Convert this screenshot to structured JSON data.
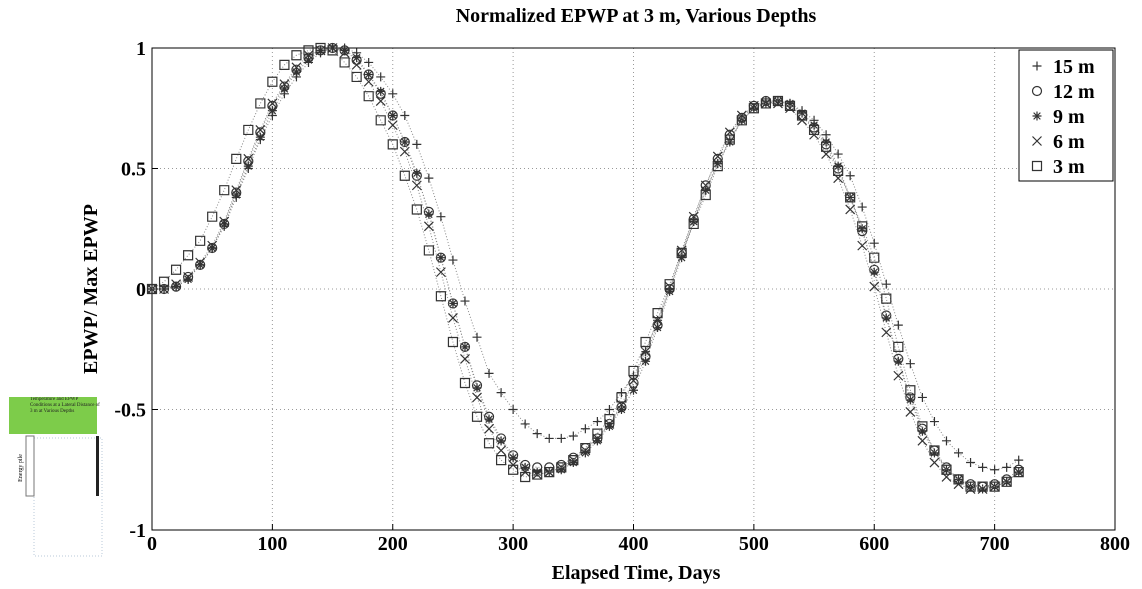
{
  "chart_data": {
    "type": "scatter",
    "title": "Normalized EPWP at 3 m, Various Depths",
    "x_label": "Elapsed Time, Days",
    "y_label": "EPWP/ Max EPWP",
    "xlim": [
      0,
      800
    ],
    "xticks": [
      0,
      100,
      200,
      300,
      400,
      500,
      600,
      700,
      800
    ],
    "ylim": [
      -1,
      1
    ],
    "yticks": [
      -1,
      -0.5,
      0,
      0.5,
      1
    ],
    "grid": true,
    "legend": "upper right",
    "x": [
      0,
      10,
      20,
      30,
      40,
      50,
      60,
      70,
      80,
      90,
      100,
      110,
      120,
      130,
      140,
      150,
      160,
      170,
      180,
      190,
      200,
      210,
      220,
      230,
      240,
      250,
      260,
      270,
      280,
      290,
      300,
      310,
      320,
      330,
      340,
      350,
      360,
      370,
      380,
      390,
      400,
      410,
      420,
      430,
      440,
      450,
      460,
      470,
      480,
      490,
      500,
      510,
      520,
      530,
      540,
      550,
      560,
      570,
      580,
      590,
      600,
      610,
      620,
      630,
      640,
      650,
      660,
      670,
      680,
      690,
      700,
      710,
      720
    ],
    "series": [
      {
        "name": "15 m",
        "marker": "plus",
        "color": "#333333",
        "values": [
          0,
          0,
          0.01,
          0.04,
          0.1,
          0.17,
          0.26,
          0.38,
          0.5,
          0.62,
          0.72,
          0.81,
          0.88,
          0.94,
          0.98,
          1.0,
          1.0,
          0.98,
          0.94,
          0.88,
          0.81,
          0.72,
          0.6,
          0.46,
          0.3,
          0.12,
          -0.05,
          -0.2,
          -0.35,
          -0.43,
          -0.5,
          -0.56,
          -0.6,
          -0.62,
          -0.62,
          -0.61,
          -0.58,
          -0.55,
          -0.5,
          -0.43,
          -0.36,
          -0.26,
          -0.13,
          0.0,
          0.14,
          0.28,
          0.41,
          0.52,
          0.62,
          0.7,
          0.75,
          0.78,
          0.78,
          0.77,
          0.74,
          0.7,
          0.64,
          0.56,
          0.47,
          0.34,
          0.19,
          0.02,
          -0.15,
          -0.31,
          -0.45,
          -0.55,
          -0.63,
          -0.68,
          -0.72,
          -0.74,
          -0.75,
          -0.74,
          -0.71
        ]
      },
      {
        "name": "12 m",
        "marker": "circle",
        "color": "#333333",
        "values": [
          0,
          0,
          0.01,
          0.05,
          0.1,
          0.17,
          0.27,
          0.4,
          0.53,
          0.65,
          0.76,
          0.84,
          0.91,
          0.96,
          0.99,
          1.0,
          0.99,
          0.95,
          0.89,
          0.81,
          0.72,
          0.61,
          0.47,
          0.32,
          0.13,
          -0.06,
          -0.24,
          -0.4,
          -0.53,
          -0.62,
          -0.69,
          -0.73,
          -0.74,
          -0.74,
          -0.73,
          -0.7,
          -0.66,
          -0.62,
          -0.56,
          -0.49,
          -0.39,
          -0.28,
          -0.15,
          0.0,
          0.15,
          0.29,
          0.43,
          0.54,
          0.64,
          0.71,
          0.76,
          0.78,
          0.78,
          0.76,
          0.72,
          0.67,
          0.6,
          0.5,
          0.38,
          0.24,
          0.08,
          -0.11,
          -0.29,
          -0.45,
          -0.58,
          -0.67,
          -0.74,
          -0.79,
          -0.81,
          -0.82,
          -0.81,
          -0.79,
          -0.75
        ]
      },
      {
        "name": "9 m",
        "marker": "star",
        "color": "#333333",
        "values": [
          0,
          0,
          0.01,
          0.04,
          0.1,
          0.17,
          0.27,
          0.39,
          0.51,
          0.63,
          0.74,
          0.83,
          0.9,
          0.95,
          0.99,
          1.0,
          0.99,
          0.96,
          0.89,
          0.82,
          0.72,
          0.61,
          0.48,
          0.31,
          0.13,
          -0.06,
          -0.24,
          -0.41,
          -0.54,
          -0.63,
          -0.7,
          -0.74,
          -0.76,
          -0.76,
          -0.75,
          -0.72,
          -0.68,
          -0.63,
          -0.57,
          -0.5,
          -0.42,
          -0.3,
          -0.16,
          -0.01,
          0.13,
          0.28,
          0.41,
          0.52,
          0.61,
          0.7,
          0.75,
          0.77,
          0.78,
          0.77,
          0.73,
          0.68,
          0.61,
          0.51,
          0.38,
          0.25,
          0.07,
          -0.12,
          -0.3,
          -0.46,
          -0.59,
          -0.68,
          -0.75,
          -0.79,
          -0.82,
          -0.83,
          -0.82,
          -0.8,
          -0.76
        ]
      },
      {
        "name": "6 m",
        "marker": "cross",
        "color": "#333333",
        "values": [
          0,
          0,
          0.02,
          0.05,
          0.11,
          0.18,
          0.28,
          0.41,
          0.54,
          0.66,
          0.77,
          0.85,
          0.92,
          0.97,
          0.99,
          1.0,
          0.98,
          0.93,
          0.86,
          0.78,
          0.68,
          0.57,
          0.43,
          0.26,
          0.07,
          -0.12,
          -0.29,
          -0.45,
          -0.58,
          -0.67,
          -0.73,
          -0.76,
          -0.77,
          -0.76,
          -0.74,
          -0.71,
          -0.67,
          -0.62,
          -0.56,
          -0.48,
          -0.38,
          -0.26,
          -0.13,
          0.01,
          0.16,
          0.3,
          0.43,
          0.55,
          0.65,
          0.72,
          0.76,
          0.77,
          0.77,
          0.75,
          0.7,
          0.64,
          0.56,
          0.46,
          0.33,
          0.18,
          0.01,
          -0.18,
          -0.36,
          -0.51,
          -0.63,
          -0.72,
          -0.78,
          -0.81,
          -0.83,
          -0.83,
          -0.82,
          -0.8,
          -0.76
        ]
      },
      {
        "name": "3 m",
        "marker": "square",
        "color": "#333333",
        "values": [
          0,
          0.03,
          0.08,
          0.14,
          0.2,
          0.3,
          0.41,
          0.54,
          0.66,
          0.77,
          0.86,
          0.93,
          0.97,
          0.99,
          1.0,
          0.99,
          0.94,
          0.88,
          0.8,
          0.7,
          0.6,
          0.47,
          0.33,
          0.16,
          -0.03,
          -0.22,
          -0.39,
          -0.53,
          -0.64,
          -0.71,
          -0.75,
          -0.78,
          -0.77,
          -0.76,
          -0.74,
          -0.71,
          -0.66,
          -0.6,
          -0.54,
          -0.45,
          -0.34,
          -0.22,
          -0.1,
          0.02,
          0.15,
          0.27,
          0.39,
          0.51,
          0.62,
          0.7,
          0.75,
          0.77,
          0.78,
          0.76,
          0.72,
          0.66,
          0.59,
          0.49,
          0.38,
          0.26,
          0.13,
          -0.04,
          -0.24,
          -0.42,
          -0.57,
          -0.67,
          -0.75,
          -0.79,
          -0.82,
          -0.82,
          -0.82,
          -0.8,
          -0.76
        ]
      }
    ]
  },
  "inset": {
    "caption": "Temperature and EPWP Conditions at a Lateral Distance of 3 m at Various Depths",
    "pile_label": "Energy pile"
  }
}
